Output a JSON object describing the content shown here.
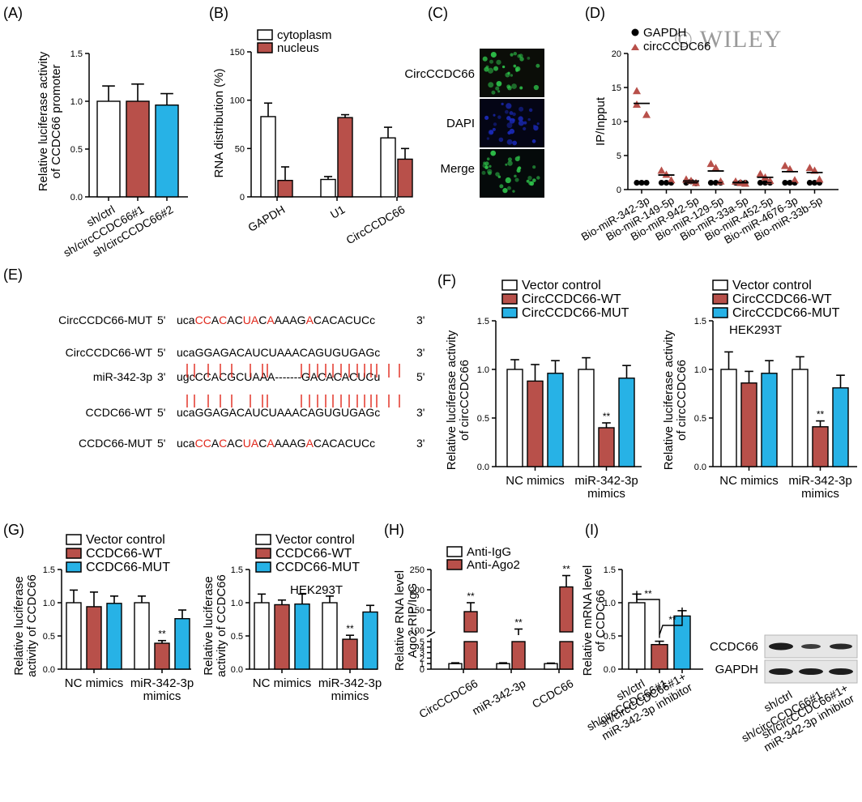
{
  "watermark": "© WILEY",
  "colors": {
    "white": "#ffffff",
    "red": "#b8504a",
    "blue": "#27b2e6",
    "black": "#000000",
    "seqRed": "#e0271b",
    "microGreen": "#2ec24a",
    "microBlue": "#1b2ab8",
    "blotDark": "#1d1d1d"
  },
  "labels": {
    "A": "(A)",
    "B": "(B)",
    "C": "(C)",
    "D": "(D)",
    "E": "(E)",
    "F": "(F)",
    "G": "(G)",
    "H": "(H)",
    "I": "(I)"
  },
  "panelC": {
    "rows": [
      "CircCCDC66",
      "DAPI",
      "Merge"
    ]
  },
  "panelE": {
    "rows": [
      {
        "name": "CircCCDC66-MUT",
        "p5": "5'",
        "p3": "3'",
        "seq": [
          "uca",
          "CC",
          "A",
          "C",
          "AC",
          "UA",
          "C",
          "A",
          "AAAG",
          "A",
          "CACACUC",
          "c"
        ]
      },
      {
        "name": "CircCCDC66-WT",
        "p5": "5'",
        "p3": "3'",
        "seq": "ucaGGAGACAUCUAAACAGUGUGAGc"
      },
      {
        "name": "miR-342-3p",
        "p5": "3'",
        "p3": "5'",
        "seq": "ugcCCACGCUAAA-------GACACACUCu"
      },
      {
        "name": "CCDC66-WT",
        "p5": "5'",
        "p3": "3'",
        "seq": "ucaGGAGACAUCUAAACAGUGUGAGc"
      },
      {
        "name": "CCDC66-MUT",
        "p5": "5'",
        "p3": "3'",
        "seq": [
          "uca",
          "CC",
          "A",
          "C",
          "AC",
          "UA",
          "C",
          "A",
          "AAAG",
          "A",
          "CACACUC",
          "c"
        ]
      }
    ]
  },
  "panelI_blot": {
    "rows": [
      "CCDC66",
      "GAPDH"
    ],
    "lanes": [
      "sh/ctrl",
      "sh/circCCDC66#1",
      "sh/circCCDC66#1+\nmiR-342-3p inhibitor"
    ]
  },
  "chart_data": [
    {
      "id": "A",
      "type": "bar",
      "ylabel": "Relative luciferase activity\nof CCDC66 promoter",
      "ylim": [
        0,
        1.5
      ],
      "yticks": [
        "0.0",
        "0.5",
        "1.0",
        "1.5"
      ],
      "categories": [
        "sh/ctrl",
        "sh/circCCDC66#1",
        "sh/circCCDC66#2"
      ],
      "values": [
        1.0,
        1.0,
        0.96
      ],
      "errors": [
        0.16,
        0.18,
        0.12
      ],
      "colors": [
        "white",
        "red",
        "blue"
      ]
    },
    {
      "id": "B",
      "type": "bar",
      "ylabel": "RNA distribution (%)",
      "ylim": [
        0,
        150
      ],
      "yticks": [
        "0",
        "50",
        "100",
        "150"
      ],
      "categories": [
        "GAPDH",
        "U1",
        "CircCCDC66"
      ],
      "series": [
        {
          "name": "cytoplasm",
          "values": [
            83,
            18,
            61
          ],
          "errors": [
            14,
            3,
            11
          ]
        },
        {
          "name": "nucleus",
          "values": [
            17,
            82,
            39
          ],
          "errors": [
            14,
            3,
            11
          ]
        }
      ]
    },
    {
      "id": "D",
      "type": "scatter",
      "ylabel": "IP/Inpput",
      "ylim": [
        0,
        20
      ],
      "yticks": [
        "0",
        "5",
        "10",
        "15",
        "20"
      ],
      "categories": [
        "Bio-miR-342-3p",
        "Bio-miR-149-5p",
        "Bio-miR-942-5p",
        "Bio-miR-129-5p",
        "Bio-miR-33a-5p",
        "Bio-miR-452-5p",
        "Bio-miR-4676-3p",
        "Bio-miR-33b-5p"
      ],
      "series": [
        {
          "name": "GAPDH",
          "points": [
            [
              1,
              1,
              1
            ],
            [
              1,
              1,
              1
            ],
            [
              1,
              1.2,
              0.9
            ],
            [
              1,
              1,
              1
            ],
            [
              1,
              1,
              1
            ],
            [
              1,
              1,
              1
            ],
            [
              1,
              1,
              1
            ],
            [
              1,
              1,
              1
            ]
          ]
        },
        {
          "name": "circCCDC66",
          "points": [
            [
              14.5,
              12.5,
              11.0
            ],
            [
              2.8,
              2.2,
              1.4
            ],
            [
              1.5,
              1.3,
              1.0
            ],
            [
              3.8,
              3.2,
              1.2
            ],
            [
              1.2,
              1.0,
              0.9
            ],
            [
              2.3,
              1.8,
              1.3
            ],
            [
              3.5,
              3.0,
              1.4
            ],
            [
              3.2,
              2.8,
              1.5
            ]
          ]
        }
      ]
    },
    {
      "id": "F1",
      "type": "bar",
      "ylabel": "Relative luciferase activity\nof circCCDC66",
      "ylim": [
        0,
        1.5
      ],
      "yticks": [
        "0.0",
        "0.5",
        "1.0",
        "1.5"
      ],
      "categories": [
        "NC mimics",
        "miR-342-3p\nmimics"
      ],
      "series": [
        {
          "name": "Vector control",
          "values": [
            1.0,
            1.0
          ],
          "errors": [
            0.1,
            0.12
          ]
        },
        {
          "name": "CircCCDC66-WT",
          "values": [
            0.88,
            0.4
          ],
          "errors": [
            0.17,
            0.05
          ]
        },
        {
          "name": "CircCCDC66-MUT",
          "values": [
            0.96,
            0.91
          ],
          "errors": [
            0.13,
            0.13
          ]
        }
      ],
      "annotations": [
        "**"
      ]
    },
    {
      "id": "F2",
      "type": "bar",
      "ylabel": "Relative luciferase activity\nof circCCDC66",
      "ylim": [
        0,
        1.5
      ],
      "yticks": [
        "0.0",
        "0.5",
        "1.0",
        "1.5"
      ],
      "subtitle": "HEK293T",
      "categories": [
        "NC mimics",
        "miR-342-3p\nmimics"
      ],
      "series": [
        {
          "name": "Vector control",
          "values": [
            1.0,
            1.0
          ],
          "errors": [
            0.18,
            0.13
          ]
        },
        {
          "name": "CircCCDC66-WT",
          "values": [
            0.86,
            0.41
          ],
          "errors": [
            0.12,
            0.06
          ]
        },
        {
          "name": "CircCCDC66-MUT",
          "values": [
            0.96,
            0.81
          ],
          "errors": [
            0.13,
            0.13
          ]
        }
      ],
      "annotations": [
        "**"
      ]
    },
    {
      "id": "G1",
      "type": "bar",
      "ylabel": "Relative luciferase\nactivity of CCDC66",
      "ylim": [
        0,
        1.5
      ],
      "yticks": [
        "0.0",
        "0.5",
        "1.0",
        "1.5"
      ],
      "categories": [
        "NC mimics",
        "miR-342-3p\nmimics"
      ],
      "series": [
        {
          "name": "Vector control",
          "values": [
            1.0,
            1.0
          ],
          "errors": [
            0.19,
            0.1
          ]
        },
        {
          "name": "CCDC66-WT",
          "values": [
            0.94,
            0.39
          ],
          "errors": [
            0.22,
            0.04
          ]
        },
        {
          "name": "CCDC66-MUT",
          "values": [
            0.99,
            0.76
          ],
          "errors": [
            0.11,
            0.13
          ]
        }
      ],
      "annotations": [
        "**"
      ]
    },
    {
      "id": "G2",
      "type": "bar",
      "ylabel": "Relative luciferase\nactivity of CCDC66",
      "ylim": [
        0,
        1.5
      ],
      "yticks": [
        "0.0",
        "0.5",
        "1.0",
        "1.5"
      ],
      "subtitle": "HEK293T",
      "categories": [
        "NC mimics",
        "miR-342-3p\nmimics"
      ],
      "series": [
        {
          "name": "Vector control",
          "values": [
            1.0,
            1.0
          ],
          "errors": [
            0.13,
            0.1
          ]
        },
        {
          "name": "CCDC66-WT",
          "values": [
            0.97,
            0.45
          ],
          "errors": [
            0.07,
            0.06
          ]
        },
        {
          "name": "CCDC66-MUT",
          "values": [
            0.98,
            0.86
          ],
          "errors": [
            0.15,
            0.1
          ]
        }
      ],
      "annotations": [
        "**"
      ]
    },
    {
      "id": "H",
      "type": "bar",
      "ylabel": "Relative RNA level\nAgo2 RIP/IgG",
      "yticks_lower": [
        "0",
        "1",
        "2",
        "3",
        "4",
        "5"
      ],
      "yticks_upper": [
        "100",
        "150",
        "200",
        "250"
      ],
      "categories": [
        "CircCCDC66",
        "miR-342-3p",
        "CCDC66"
      ],
      "series": [
        {
          "name": "Anti-IgG",
          "values": [
            1.0,
            1.0,
            1.0
          ],
          "errors": [
            0.15,
            0.15,
            0.1
          ]
        },
        {
          "name": "Anti-Ago2",
          "values": [
            146,
            88,
            207
          ],
          "errors": [
            22,
            15,
            28
          ]
        }
      ],
      "annotations": [
        "**",
        "**",
        "**"
      ]
    },
    {
      "id": "I",
      "type": "bar",
      "ylabel": "Relative mRNA level\nof CCDC66",
      "ylim": [
        0,
        1.5
      ],
      "yticks": [
        "0.0",
        "0.5",
        "1.0",
        "1.5"
      ],
      "categories": [
        "sh/ctrl",
        "sh/circCCDC66#1",
        "sh/circCCDC66#1+\nmiR-342-3p inhibitor"
      ],
      "values": [
        1.0,
        0.37,
        0.8
      ],
      "errors": [
        0.13,
        0.05,
        0.08
      ],
      "colors": [
        "white",
        "red",
        "blue"
      ],
      "annotations": [
        "**",
        "**"
      ]
    }
  ]
}
